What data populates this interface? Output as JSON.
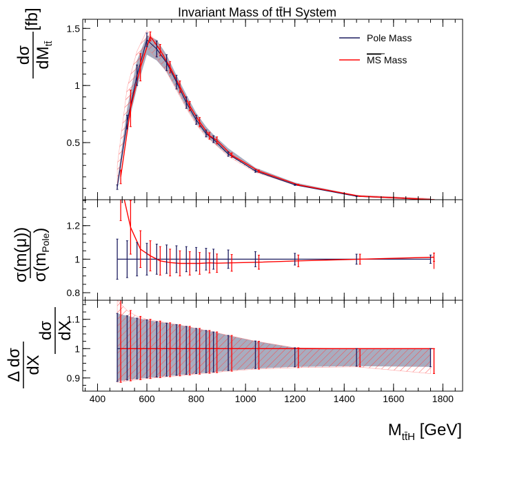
{
  "chart_data": {
    "type": "line",
    "title": "Invariant Mass of tt̄H System",
    "x": {
      "bins": [
        480,
        520,
        560,
        600,
        640,
        680,
        720,
        760,
        800,
        840,
        870,
        930,
        1040,
        1200,
        1450,
        1750
      ],
      "xlim": [
        340,
        1880
      ],
      "ticks": [
        400,
        600,
        800,
        1000,
        1200,
        1400,
        1600,
        1800
      ],
      "tick_labels": [
        "400",
        "600",
        "800",
        "1000",
        "1200",
        "1400",
        "1600",
        "1800"
      ],
      "label_main": "M",
      "label_sub": "tt̄H",
      "label_unit": " [GeV]"
    },
    "legend": {
      "placement": "top-right",
      "entries": [
        {
          "label": "Pole Mass",
          "color": "#1a1a5e"
        },
        {
          "label": "MS",
          "suffix": " Mass",
          "overline": true,
          "color": "#ff0000"
        }
      ]
    },
    "panels": [
      {
        "name": "cross-section",
        "ylim": [
          0.0,
          1.58
        ],
        "yticks": [
          0.5,
          1.0,
          1.5
        ],
        "ytick_labels": [
          "0.5",
          "1",
          "1.5"
        ],
        "ylabel_num": "dσ",
        "ylabel_den": "dM",
        "ylabel_den_sub": "tt̄",
        "ylabel_unit": "[fb]",
        "series": [
          {
            "name": "Pole Mass",
            "color": "#1a1a5e",
            "values": [
              0.11,
              0.68,
              1.09,
              1.4,
              1.32,
              1.2,
              1.03,
              0.85,
              0.7,
              0.58,
              0.53,
              0.4,
              0.25,
              0.13,
              0.03,
              0.0
            ],
            "errors": [
              0.02,
              0.06,
              0.09,
              0.06,
              0.07,
              0.07,
              0.06,
              0.05,
              0.04,
              0.03,
              0.03,
              0.02,
              0.01,
              0.005,
              0.002,
              0.001
            ],
            "band_low": [
              0.12,
              0.62,
              0.98,
              1.27,
              1.22,
              1.12,
              0.97,
              0.81,
              0.67,
              0.56,
              0.5,
              0.39,
              0.25,
              0.13,
              0.03,
              0.0
            ],
            "band_high": [
              0.16,
              0.8,
              1.22,
              1.44,
              1.4,
              1.27,
              1.09,
              0.92,
              0.76,
              0.64,
              0.57,
              0.45,
              0.28,
              0.15,
              0.04,
              0.01
            ]
          },
          {
            "name": "MS Mass",
            "color": "#ff0000",
            "values": [
              0.2,
              0.8,
              1.16,
              1.43,
              1.31,
              1.16,
              0.99,
              0.82,
              0.68,
              0.56,
              0.52,
              0.39,
              0.25,
              0.13,
              0.03,
              0.0
            ],
            "errors": [
              0.06,
              0.16,
              0.12,
              0.04,
              0.05,
              0.05,
              0.05,
              0.04,
              0.04,
              0.03,
              0.03,
              0.02,
              0.01,
              0.005,
              0.002,
              0.001
            ],
            "band_low": [
              0.13,
              0.68,
              1.02,
              1.33,
              1.24,
              1.12,
              0.96,
              0.8,
              0.66,
              0.55,
              0.5,
              0.38,
              0.24,
              0.13,
              0.03,
              0.0
            ],
            "band_high": [
              0.3,
              0.98,
              1.3,
              1.48,
              1.38,
              1.24,
              1.06,
              0.88,
              0.73,
              0.61,
              0.55,
              0.42,
              0.27,
              0.14,
              0.04,
              0.01
            ]
          }
        ]
      },
      {
        "name": "ratio",
        "ylim": [
          0.755,
          1.355
        ],
        "yticks": [
          0.8,
          1.0,
          1.2
        ],
        "ytick_labels": [
          "0.8",
          "1",
          "1.2"
        ],
        "ylabel_num": "σ(m(μ))",
        "ylabel_den": "σ(m",
        "ylabel_den_sub": "Pole",
        "ylabel_den_end": ")",
        "series": [
          {
            "name": "Pole Mass",
            "color": "#1a1a5e",
            "values": [
              1.0,
              1.0,
              1.0,
              1.0,
              1.0,
              1.0,
              1.0,
              1.0,
              1.0,
              1.0,
              1.0,
              1.0,
              1.0,
              1.0,
              1.0,
              1.0
            ],
            "errors": [
              0.12,
              0.11,
              0.1,
              0.095,
              0.09,
              0.085,
              0.08,
              0.075,
              0.07,
              0.065,
              0.06,
              0.055,
              0.045,
              0.035,
              0.03,
              0.025
            ]
          },
          {
            "name": "MS Mass",
            "color": "#ff0000",
            "values": [
              1.45,
              1.19,
              1.06,
              1.02,
              0.99,
              0.98,
              0.975,
              0.975,
              0.975,
              0.978,
              0.976,
              0.978,
              0.982,
              0.99,
              1.0,
              1.012
            ],
            "errors": [
              0.22,
              0.16,
              0.11,
              0.09,
              0.085,
              0.08,
              0.075,
              0.07,
              0.065,
              0.06,
              0.055,
              0.05,
              0.042,
              0.035,
              0.03,
              0.025
            ]
          }
        ]
      },
      {
        "name": "relative-uncertainty",
        "ylim": [
          0.855,
          1.165
        ],
        "yticks": [
          0.9,
          1.0,
          1.1
        ],
        "ytick_labels": [
          "0.9",
          "1",
          "1.1"
        ],
        "ylabel_a_num": "Δ dσ",
        "ylabel_a_den": "dX",
        "ylabel_b_num": "dσ",
        "ylabel_b_den": "dX",
        "series": [
          {
            "name": "Pole Mass",
            "color": "#1a1a5e",
            "values": [
              1.0,
              1.0,
              1.0,
              1.0,
              1.0,
              1.0,
              1.0,
              1.0,
              1.0,
              1.0,
              1.0,
              1.0,
              1.0,
              1.0,
              1.0,
              1.0
            ],
            "band_low": [
              0.888,
              0.893,
              0.897,
              0.9,
              0.903,
              0.906,
              0.909,
              0.912,
              0.915,
              0.918,
              0.92,
              0.925,
              0.932,
              0.938,
              0.94,
              0.938
            ],
            "band_high": [
              1.12,
              1.112,
              1.104,
              1.098,
              1.092,
              1.087,
              1.082,
              1.076,
              1.069,
              1.062,
              1.057,
              1.045,
              1.026,
              1.003,
              1.0,
              1.0
            ]
          },
          {
            "name": "MS Mass",
            "color": "#ff0000",
            "values": [
              1.0,
              1.0,
              1.0,
              1.0,
              1.0,
              1.0,
              1.0,
              1.0,
              1.0,
              1.0,
              1.0,
              1.0,
              1.0,
              1.0,
              1.0,
              1.0
            ],
            "band_low": [
              0.885,
              0.89,
              0.894,
              0.898,
              0.901,
              0.904,
              0.907,
              0.91,
              0.913,
              0.916,
              0.918,
              0.923,
              0.93,
              0.935,
              0.938,
              0.915
            ],
            "band_high": [
              1.165,
              1.13,
              1.11,
              1.1,
              1.094,
              1.088,
              1.082,
              1.076,
              1.069,
              1.062,
              1.057,
              1.045,
              1.025,
              1.003,
              1.0,
              1.0
            ]
          }
        ]
      }
    ]
  }
}
